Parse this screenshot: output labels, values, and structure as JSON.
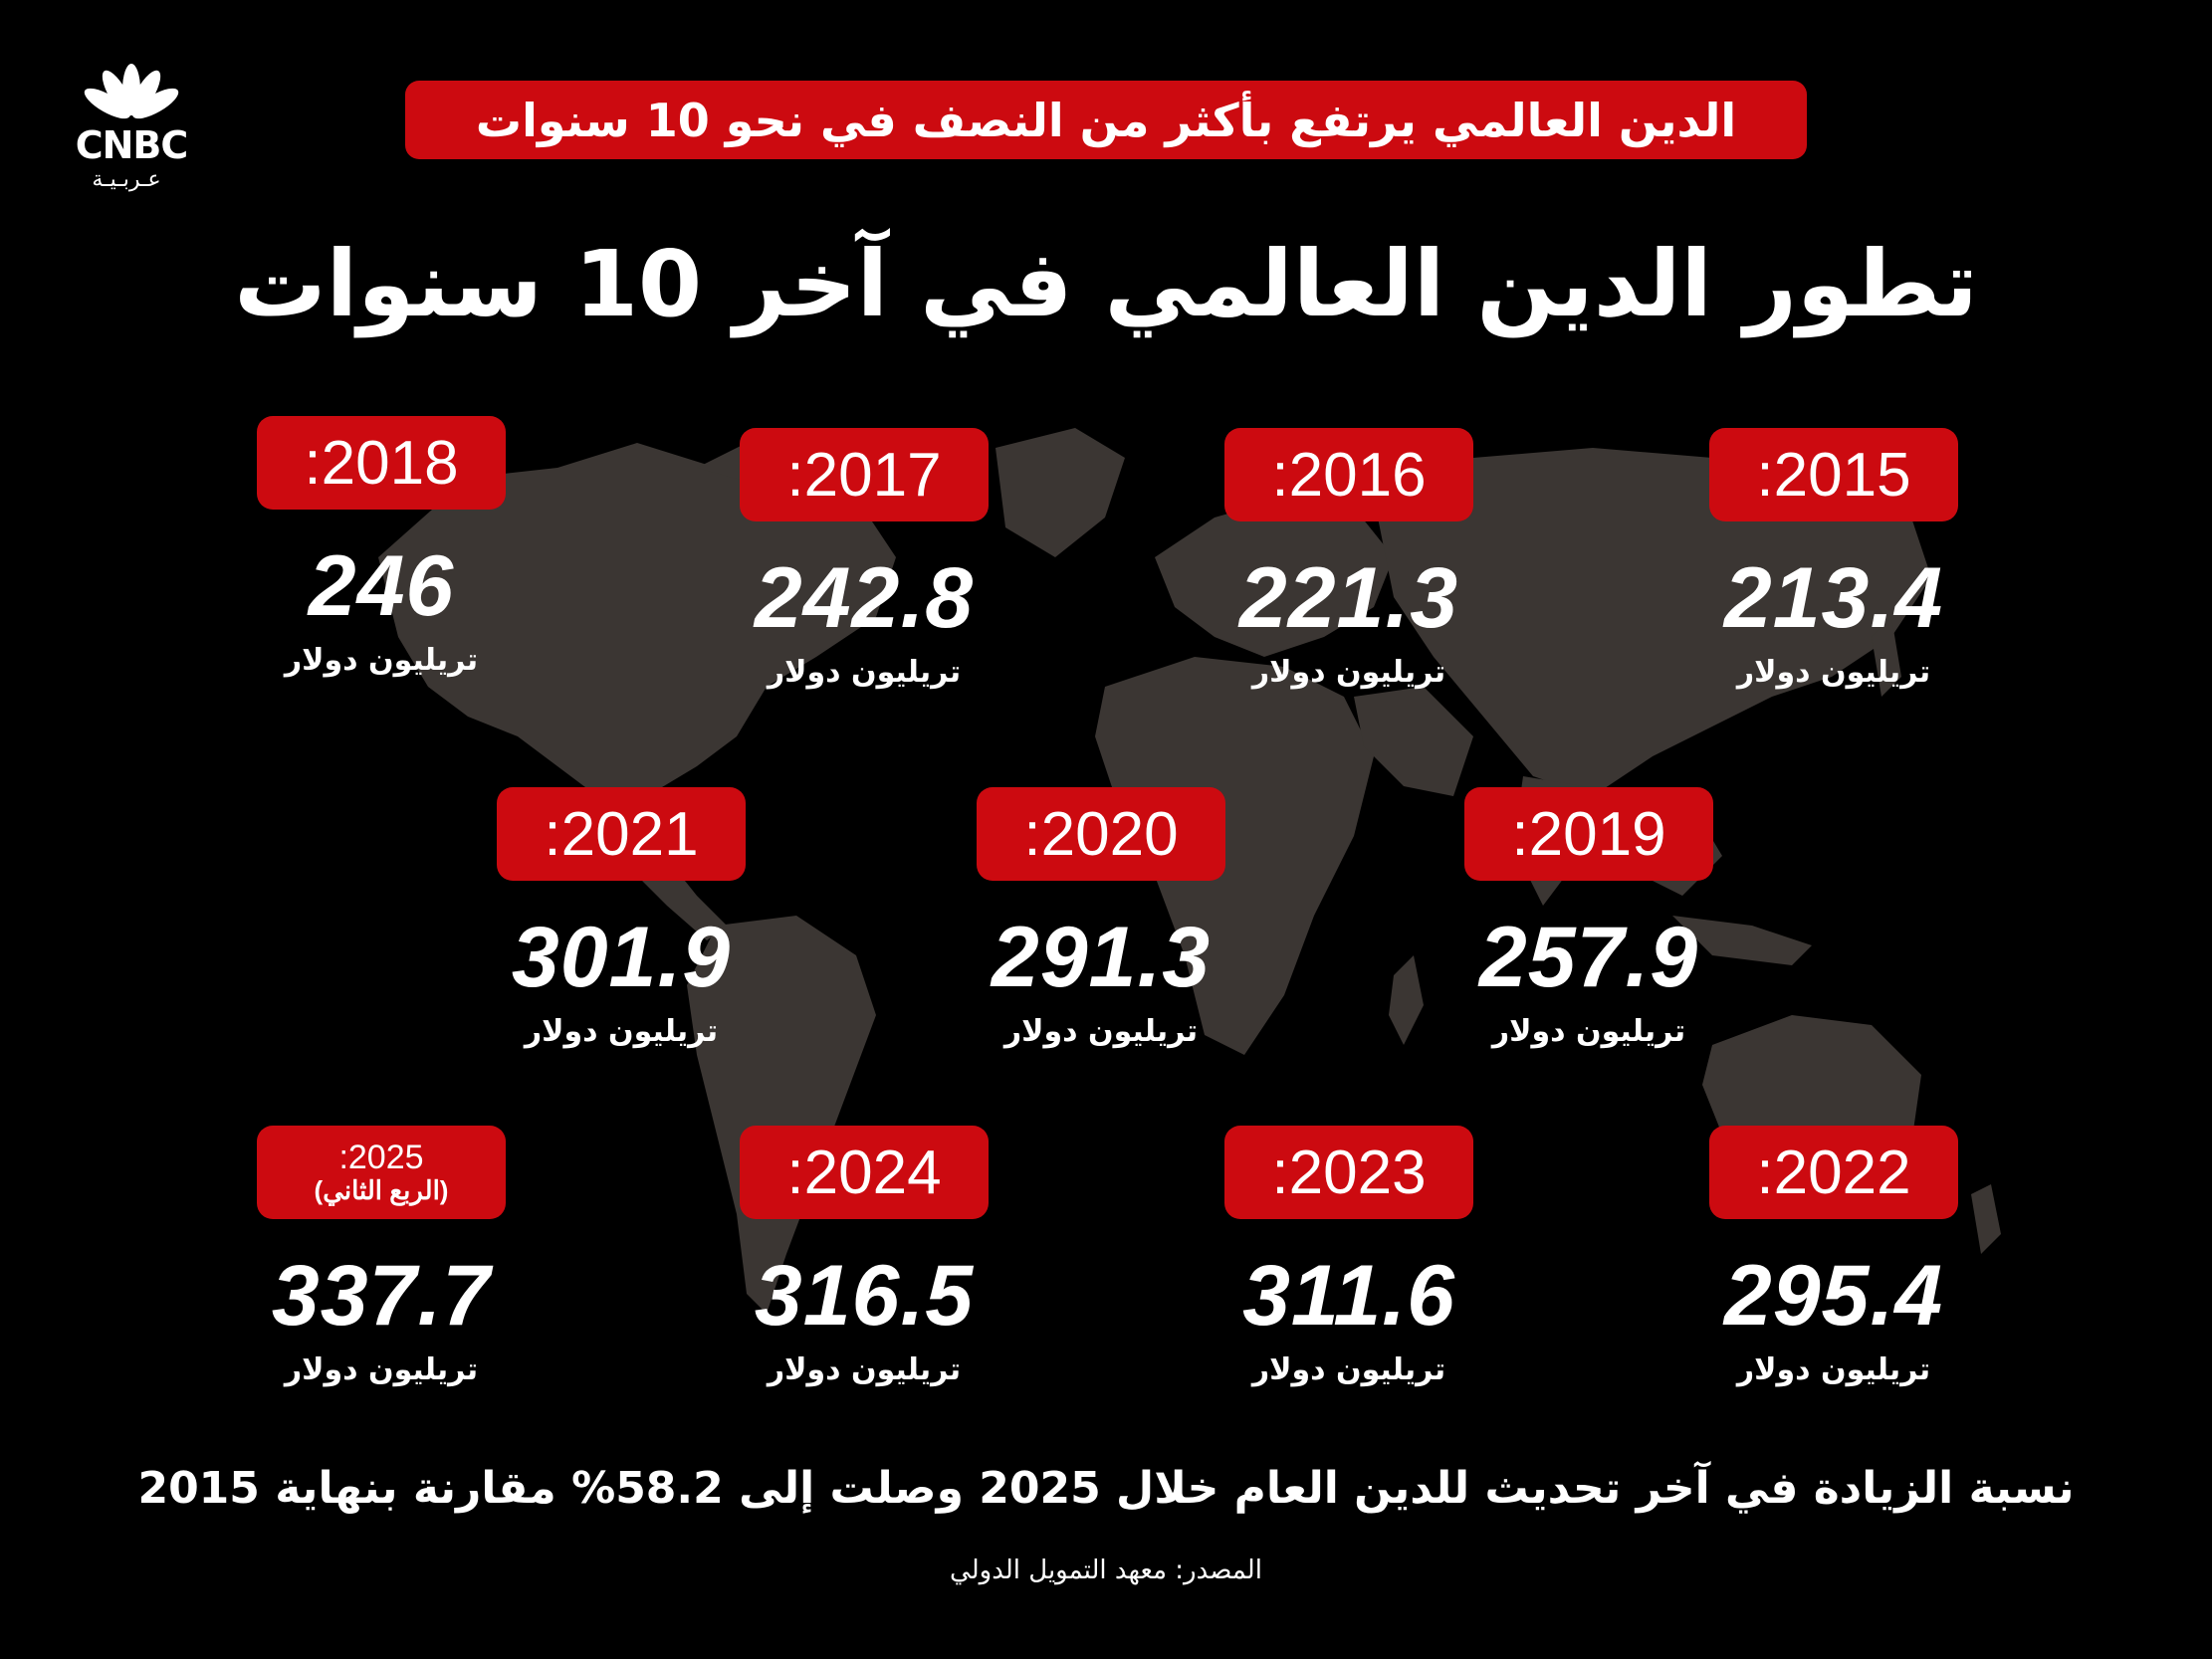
{
  "brand": {
    "name": "CNBC",
    "subtitle": "عـربـيـة",
    "logo_icon": "peacock-icon"
  },
  "tagline": "الدين العالمي يرتفع بأكثر من النصف في نحو 10 سنوات",
  "title": "تطور الدين العالمي في آخر 10 سنوات",
  "unit_label": "تريليون دولار",
  "years": [
    {
      "label": ":2015",
      "value": "213.4"
    },
    {
      "label": ":2016",
      "value": "221.3"
    },
    {
      "label": ":2017",
      "value": "242.8"
    },
    {
      "label": ":2018",
      "value": "246"
    },
    {
      "label": ":2019",
      "value": "257.9"
    },
    {
      "label": ":2020",
      "value": "291.3"
    },
    {
      "label": ":2021",
      "value": "301.9"
    },
    {
      "label": ":2022",
      "value": "295.4"
    },
    {
      "label": ":2023",
      "value": "311.6"
    },
    {
      "label": ":2024",
      "value": "316.5"
    },
    {
      "label": ":2025",
      "value": "337.7",
      "quarter": "(الربع الثاني)"
    }
  ],
  "footnote": "نسبة الزيادة في آخر تحديث للدين العام خلال 2025 وصلت إلى 58.2% مقارنة بنهاية 2015",
  "source": "المصدر: معهد التمويل الدولي",
  "colors": {
    "accent": "#cc0a10",
    "background": "#000000",
    "map": "#3b3633"
  }
}
